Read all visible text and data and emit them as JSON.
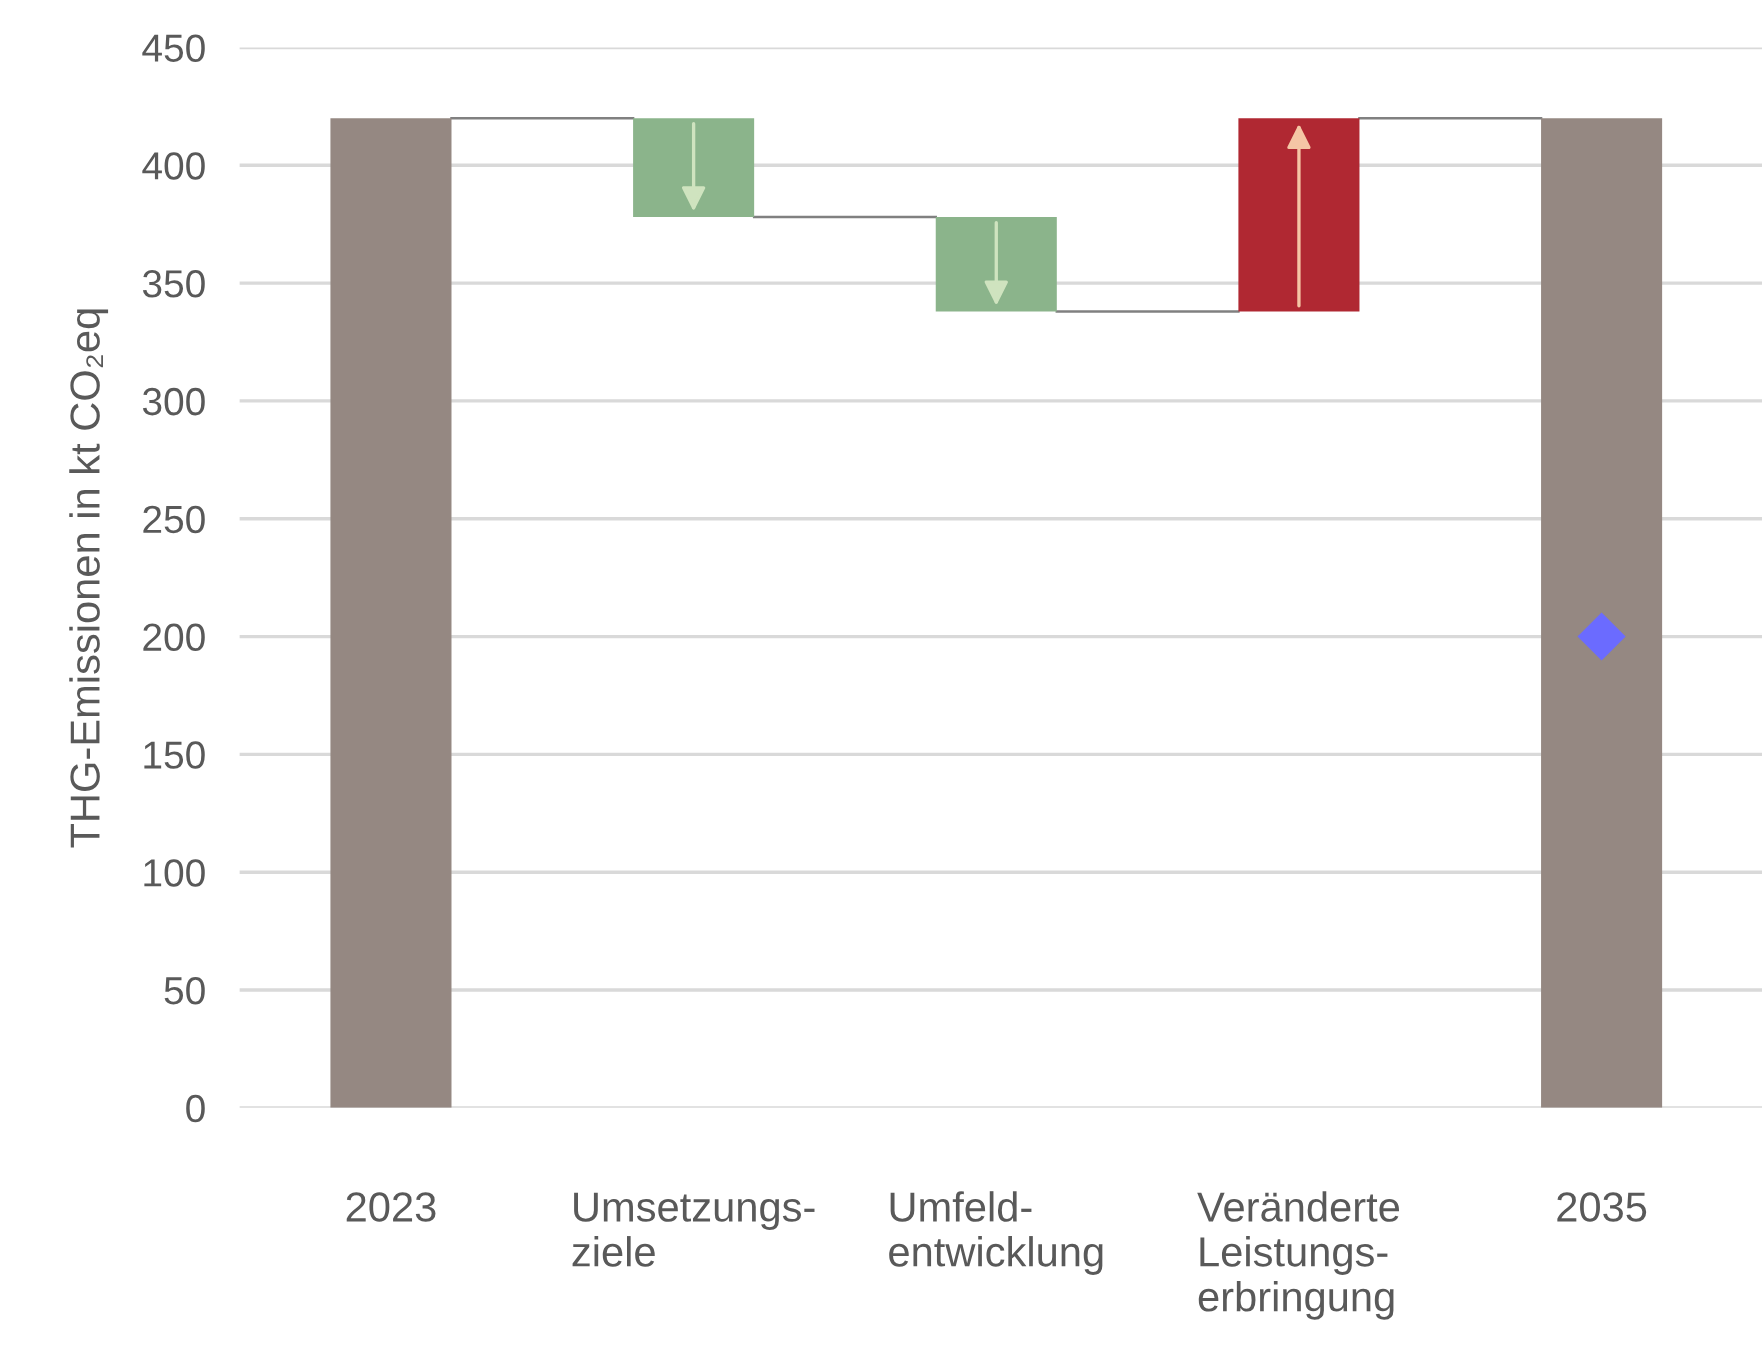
{
  "chart_data": {
    "type": "bar",
    "ylabel": "THG-Emissionen in kt CO₂eq",
    "categories": [
      "2023",
      "Umsetzungs-\nziele",
      "Umfeld-\nentwicklung",
      "Veränderte\nLeistungs-\nerbringung",
      "2035"
    ],
    "series": [
      {
        "values": [
          420,
          42,
          40,
          82,
          420
        ],
        "base": [
          0,
          378,
          338,
          338,
          0
        ],
        "colors": [
          "#958882",
          "#8bb48b",
          "#8bb48b",
          "#b02832",
          "#958882"
        ]
      },
      {
        "type": "scatter",
        "values": [
          null,
          null,
          null,
          null,
          200
        ],
        "color": "#6b6bff",
        "marker": "diamond"
      }
    ],
    "ylim": [
      0,
      450
    ],
    "yticks": [
      0,
      50,
      100,
      150,
      200,
      250,
      300,
      350,
      400,
      450
    ],
    "grid": "y",
    "legend": false
  }
}
